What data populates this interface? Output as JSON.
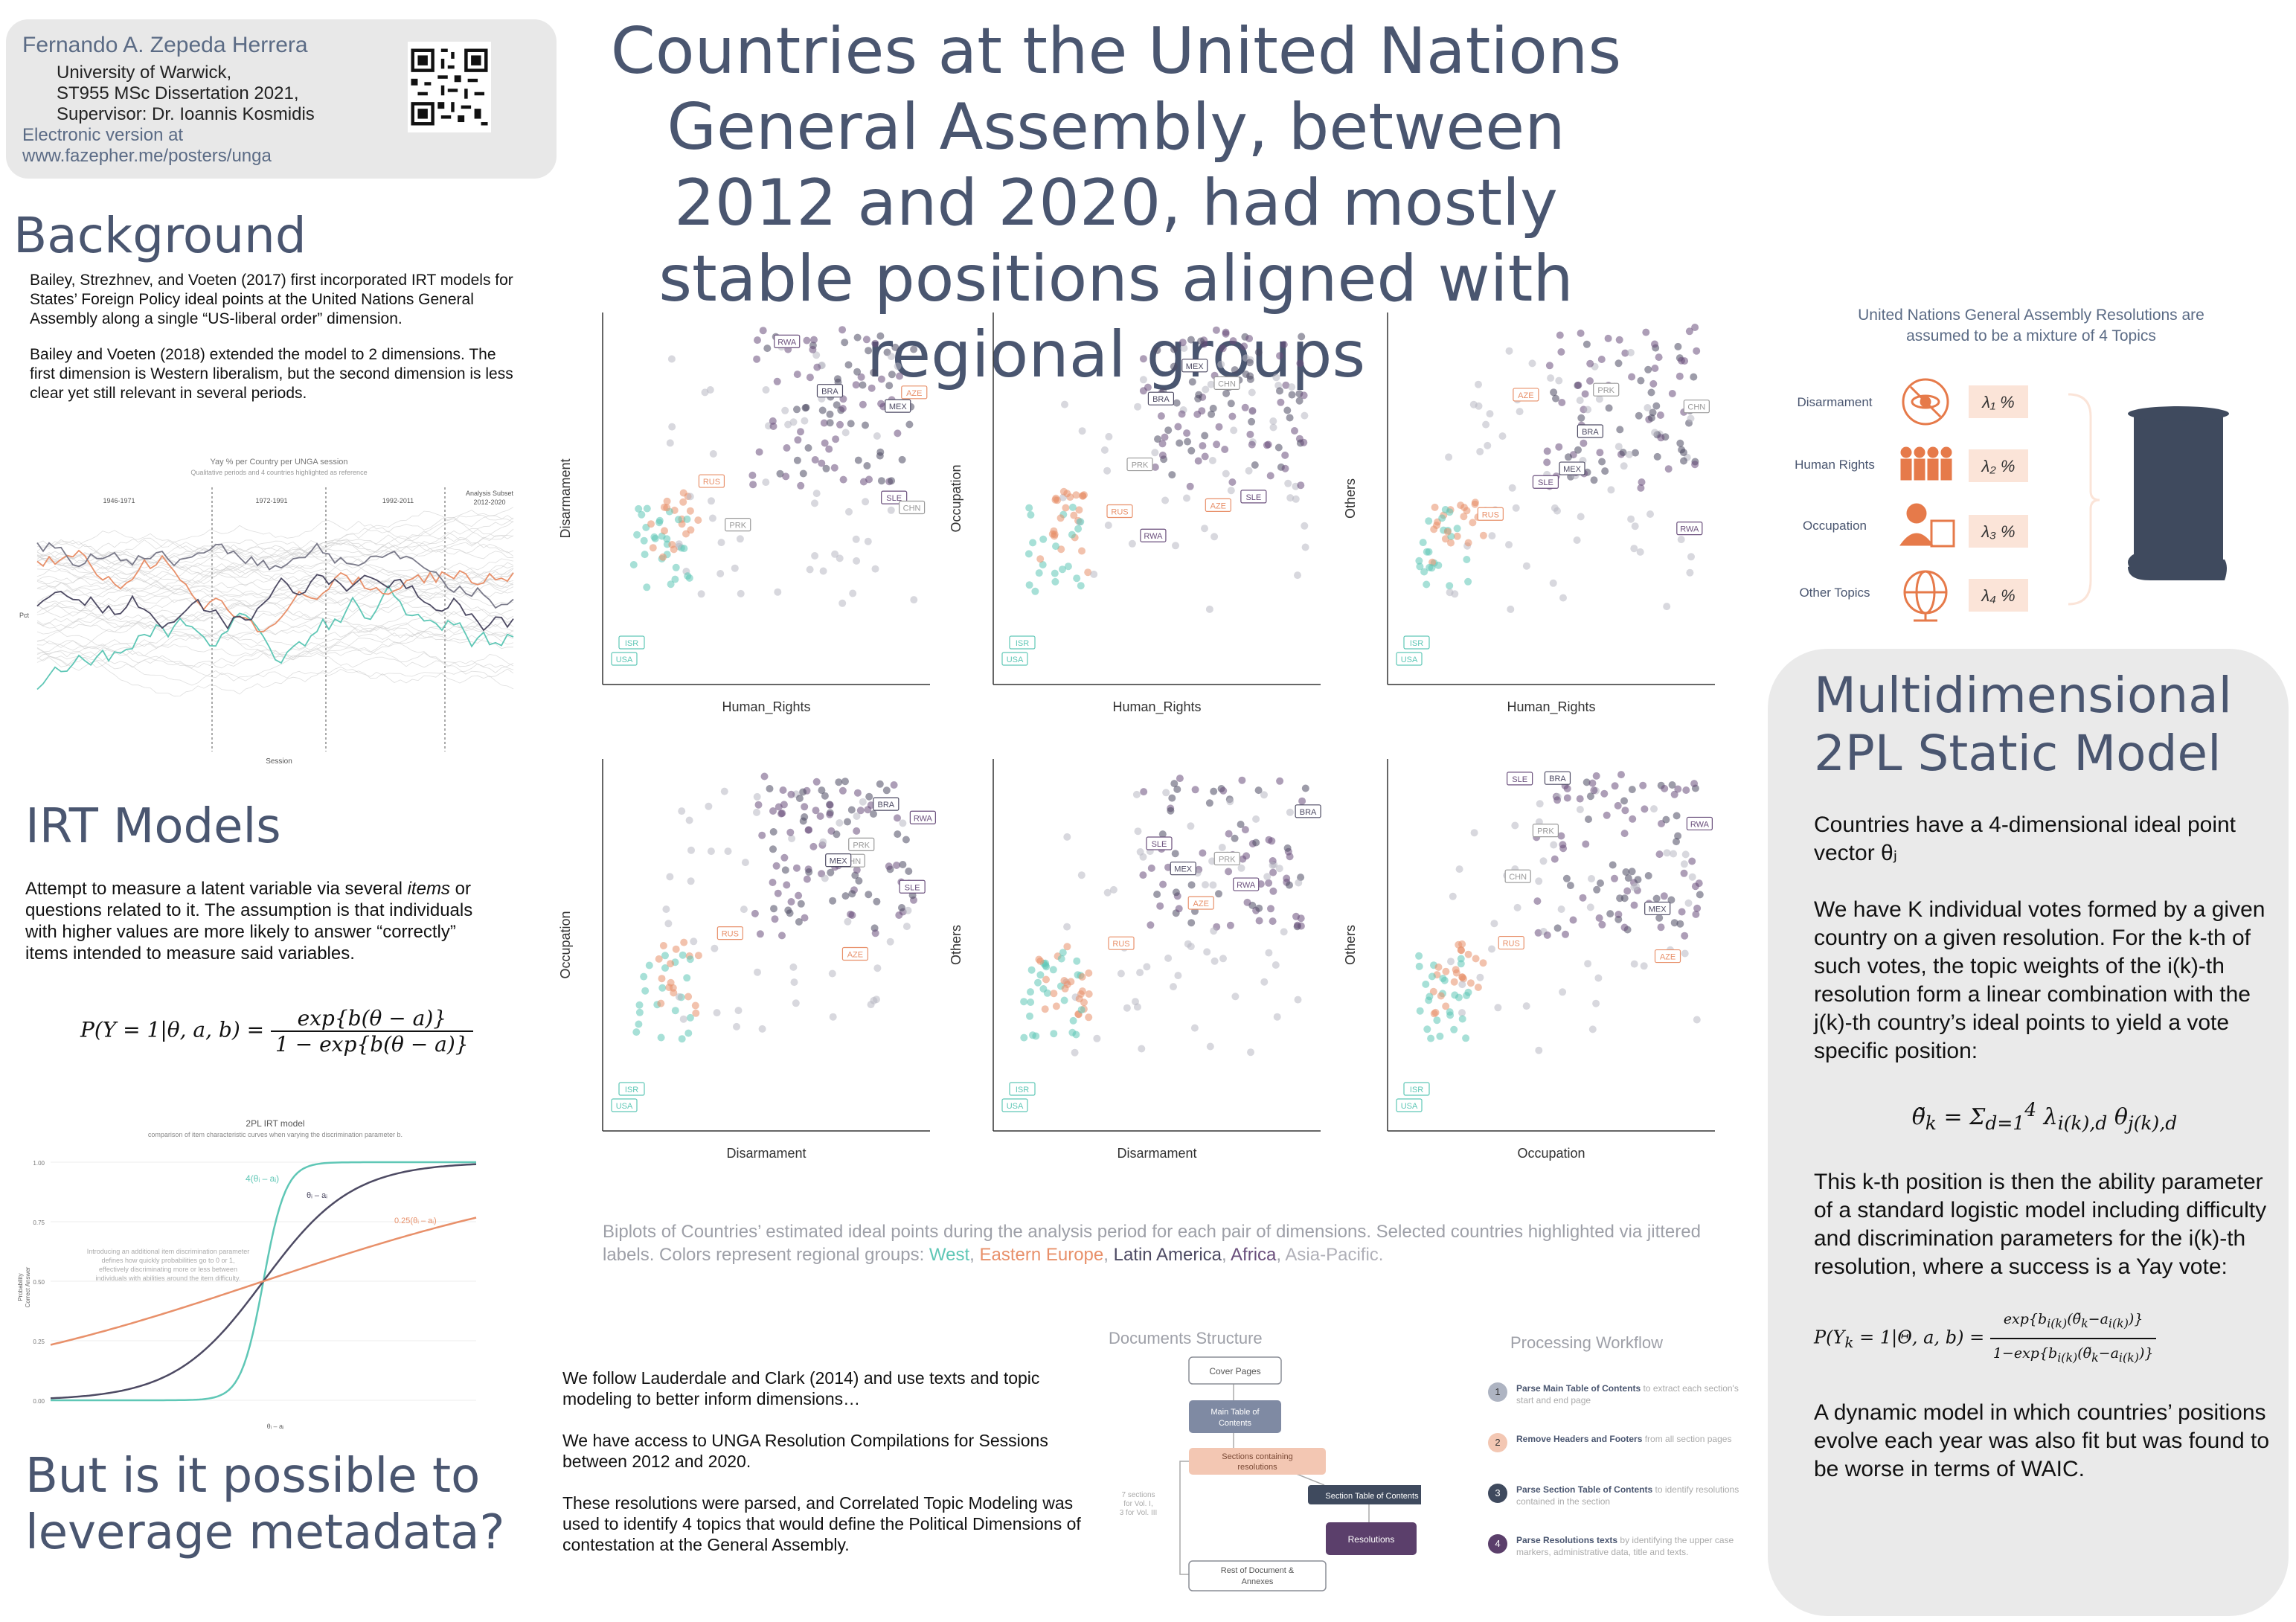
{
  "title": "Countries at the United Nations General Assembly, between 2012 and 2020, had mostly stable positions aligned with regional groups",
  "author": {
    "name": "Fernando A. Zepeda Herrera",
    "university": "University of Warwick,",
    "dissertation": "ST955 MSc Dissertation 2021,",
    "supervisor": "Supervisor: Dr. Ioannis Kosmidis",
    "electronic_label": "Electronic version at",
    "url": "www.fazepher.me/posters/unga"
  },
  "background": {
    "heading": "Background",
    "p1": "Bailey, Strezhnev, and Voeten (2017) first incorporated IRT models for States’ Foreign Policy ideal points at the United Nations General Assembly along a single “US-liberal order” dimension.",
    "p2": "Bailey and Voeten (2018) extended the model to 2 dimensions. The first dimension is Western liberalism, but the second dimension is less clear yet still relevant in several periods."
  },
  "yay_chart": {
    "title": "Yay % per Country per UNGA session",
    "subtitle": "Qualitative periods and 4 countries highlighted as reference",
    "periods": [
      "1946-1971",
      "1972-1991",
      "1992-2011",
      "Analysis Subset\n2012-2020"
    ],
    "xlabel": "Session",
    "ylabel": "Pct"
  },
  "irt": {
    "heading": "IRT Models",
    "text_a": "Attempt to measure a latent variable via several ",
    "text_em": "items",
    "text_b": " or questions related to it. The assumption is that individuals with higher values are more likely to answer “correctly” items intended to measure said variables."
  },
  "pl2": {
    "title": "2PL IRT model",
    "subtitle": "comparison of item characteristic curves when varying the discrimination parameter b.",
    "label_steep": "4(θᵢ – aᵢ)",
    "label_mid": "θᵢ – aᵢ",
    "label_flat": "0.25(θᵢ – aᵢ)",
    "note": "Introducing an additional item discrimination parameter defines how quickly probabilities go to 0 or 1, effectively discriminating more or less between individuals with abilities around the item difficulty.",
    "ylabel": "Probability\nCorrect Answer",
    "xlabel": "θᵢ – aᵢ",
    "yticks": [
      "1.00",
      "0.75",
      "0.50",
      "0.25",
      "0.00"
    ],
    "color_steep": "#5fc7b6",
    "color_mid": "#4d4a63",
    "color_flat": "#e8906a"
  },
  "leverage": {
    "heading": "But is it possible to leverage metadata?"
  },
  "text_corpus": {
    "p1": "We follow Lauderdale and Clark (2014) and use texts and topic modeling to better inform dimensions…",
    "p2": "We have access to UNGA Resolution Compilations for Sessions between 2012 and 2020.",
    "p3": "These resolutions were parsed, and Correlated Topic Modeling was used to identify 4 topics that would define the Political Dimensions of contestation at the General Assembly."
  },
  "doc_structure": {
    "title": "Documents Structure",
    "boxes": [
      "Cover Pages",
      "Main Table of Contents",
      "Sections containing resolutions",
      "Section Table of Contents",
      "Resolutions",
      "Rest of Document & Annexes"
    ],
    "side_note": "7 sections for Vol. I, 3 for Vol. III"
  },
  "workflow": {
    "title": "Processing Workflow",
    "steps": [
      {
        "num": "1",
        "bold": "Parse Main Table of Contents",
        "rest": " to extract each section's start and end page"
      },
      {
        "num": "2",
        "bold": "Remove Headers and Footers",
        "rest": " from all section pages"
      },
      {
        "num": "3",
        "bold": "Parse Section Table of Contents",
        "rest": " to identify resolutions contained in the section"
      },
      {
        "num": "4",
        "bold": "Parse Resolutions texts",
        "rest": " by identifying the upper case markers, administrative data, title and texts."
      }
    ]
  },
  "topics": {
    "title": "United Nations General Assembly Resolutions are assumed to be a mixture of 4 Topics",
    "items": [
      {
        "label": "Disarmament",
        "weight": "λ₁ %"
      },
      {
        "label": "Human Rights",
        "weight": "λ₂ %"
      },
      {
        "label": "Occupation",
        "weight": "λ₃ %"
      },
      {
        "label": "Other Topics",
        "weight": "λ₄ %"
      }
    ]
  },
  "model": {
    "heading": "Multidimensional 2PL Static Model",
    "p1": "Countries have a 4-dimensional ideal point vector θⱼ",
    "p2": "We have K individual votes formed by a given country on a given resolution. For the k-th of such votes, the topic weights of the i(k)-th resolution form a linear combination with the j(k)-th country’s ideal points to yield a vote specific position:",
    "p3": "This k-th position is then the ability parameter of a standard logistic model including difficulty and discrimination parameters for the i(k)-th resolution, where a success is a Yay vote:",
    "p4": "A dynamic model in which countries’ positions evolve each year was also fit but was found to be worse in terms of WAIC."
  },
  "caption": {
    "main": "Biplots of Countries’ estimated ideal points during the analysis period for each pair of dimensions. Selected countries highlighted via jittered labels. Colors represent regional groups: ",
    "west": "West",
    "eeurope": "Eastern Europe",
    "latam": "Latin America",
    "africa": "Africa",
    "asia": "Asia-Pacific."
  },
  "colors": {
    "west": "#5fc7b6",
    "eeurope": "#e8906a",
    "latam": "#4d4a63",
    "africa": "#6a4f7c",
    "asia": "#b8b8c2",
    "heading": "#4a5670"
  },
  "chart_data": [
    {
      "type": "scatter",
      "xlabel": "Human_Rights",
      "ylabel": "Disarmament",
      "labels": [
        "SLE",
        "AZE",
        "CHN",
        "BRA",
        "PRK",
        "RWA",
        "MEX",
        "RUS",
        "ISR",
        "USA"
      ]
    },
    {
      "type": "scatter",
      "xlabel": "Human_Rights",
      "ylabel": "Occupation",
      "labels": [
        "PRK",
        "AZE",
        "CHN",
        "BRA",
        "SLE",
        "MEX",
        "RUS",
        "RWA",
        "USA",
        "ISR"
      ]
    },
    {
      "type": "scatter",
      "xlabel": "Human_Rights",
      "ylabel": "Others",
      "labels": [
        "BRA",
        "AZE",
        "SLE",
        "CHN",
        "MEX",
        "PRK",
        "RWA",
        "RUS",
        "ISR",
        "USA"
      ]
    },
    {
      "type": "scatter",
      "xlabel": "Disarmament",
      "ylabel": "Occupation",
      "labels": [
        "PRK",
        "AZE",
        "BRA",
        "CHN",
        "SLE",
        "MEX",
        "RUS",
        "RWA",
        "USA",
        "ISR"
      ]
    },
    {
      "type": "scatter",
      "xlabel": "Disarmament",
      "ylabel": "Others",
      "labels": [
        "BRA",
        "SLE",
        "AZE",
        "MEX",
        "PRK",
        "RWA",
        "RUS",
        "ISR",
        "USA"
      ]
    },
    {
      "type": "scatter",
      "xlabel": "Occupation",
      "ylabel": "Others",
      "labels": [
        "BRA",
        "AZE",
        "SLE",
        "CHN",
        "PRK",
        "MEX",
        "RWA",
        "RUS",
        "ISR",
        "USA"
      ]
    }
  ]
}
